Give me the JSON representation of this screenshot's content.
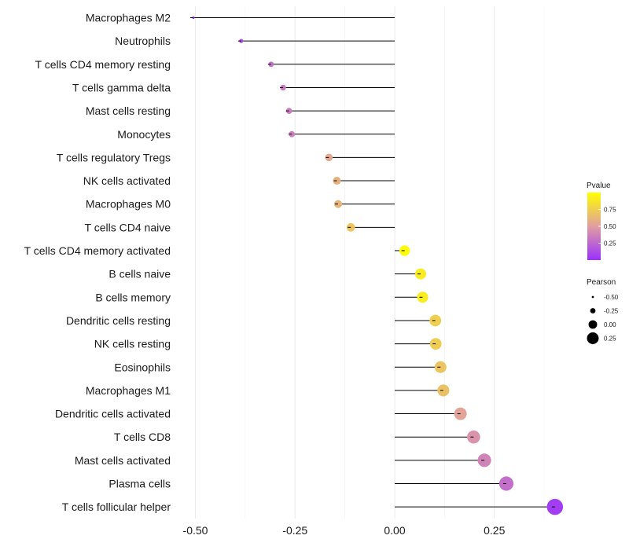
{
  "chart_data": {
    "type": "lollipop",
    "title": "",
    "xlabel": "",
    "ylabel": "",
    "xlim": [
      -0.55,
      0.42
    ],
    "xticks": [
      -0.5,
      -0.25,
      0.0,
      0.25
    ],
    "xtick_labels": [
      "-0.50",
      "-0.25",
      "0.00",
      "0.25"
    ],
    "categories": [
      "Macrophages M2",
      "Neutrophils",
      "T cells CD4 memory resting",
      "T cells gamma delta",
      "Mast cells resting",
      "Monocytes",
      "T cells regulatory  Tregs",
      "NK cells activated",
      "Macrophages M0",
      "T cells CD4 naive",
      "T cells CD4 memory activated",
      "B cells naive",
      "B cells memory",
      "Dendritic cells resting",
      "NK cells resting",
      "Eosinophils",
      "Macrophages M1",
      "Dendritic cells activated",
      "T cells CD8",
      "Mast cells activated",
      "Plasma cells",
      "T cells follicular helper"
    ],
    "pearson": [
      -0.505,
      -0.385,
      -0.31,
      -0.28,
      -0.265,
      -0.258,
      -0.165,
      -0.145,
      -0.142,
      -0.11,
      0.025,
      0.065,
      0.07,
      0.102,
      0.103,
      0.115,
      0.122,
      0.165,
      0.198,
      0.225,
      0.28,
      0.402
    ],
    "pvalue": [
      0.02,
      0.15,
      0.3,
      0.33,
      0.35,
      0.37,
      0.55,
      0.6,
      0.62,
      0.7,
      0.98,
      0.9,
      0.9,
      0.75,
      0.74,
      0.7,
      0.68,
      0.53,
      0.45,
      0.38,
      0.28,
      0.06
    ],
    "color_legend": {
      "title": "Pvalue",
      "ticks": [
        0.25,
        0.5,
        0.75
      ],
      "tick_labels": [
        "0.25",
        "0.50",
        "0.75"
      ],
      "range": [
        0.0,
        1.0
      ],
      "low_color": "#9b30ff",
      "mid_color": "#e09ea0",
      "high_color": "#ffff00"
    },
    "size_legend": {
      "title": "Pearson",
      "values": [
        -0.5,
        -0.25,
        0.0,
        0.25
      ],
      "labels": [
        "-0.50",
        "-0.25",
        "0.00",
        "0.25"
      ]
    },
    "grid": true,
    "legend_position": "right"
  }
}
